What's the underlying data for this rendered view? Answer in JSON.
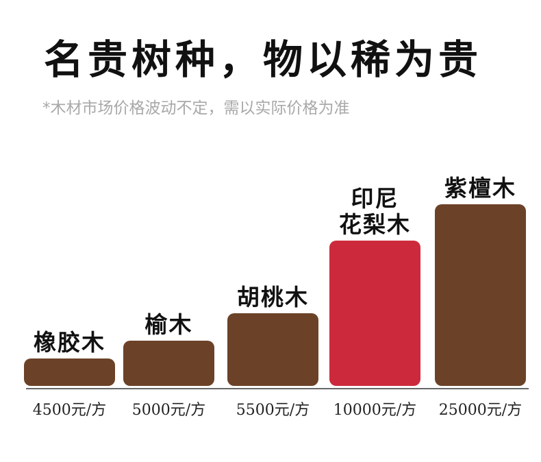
{
  "header": {
    "title": "名贵树种，物以稀为贵",
    "subtitle": "*木材市场价格波动不定，需以实际价格为准"
  },
  "chart_data": {
    "type": "bar",
    "title": "名贵树种，物以稀为贵",
    "subtitle": "*木材市场价格波动不定，需以实际价格为准",
    "categories": [
      [
        "橡胶木"
      ],
      [
        "榆木"
      ],
      [
        "胡桃木"
      ],
      [
        "印尼",
        "花梨木"
      ],
      [
        "紫檀木"
      ]
    ],
    "values": [
      4500,
      5000,
      5500,
      10000,
      25000
    ],
    "value_labels": [
      "4500元/方",
      "5000元/方",
      "5500元/方",
      "10000元/方",
      "25000元/方"
    ],
    "unit": "元/方",
    "colors": [
      "#6b4228",
      "#6b4228",
      "#6b4228",
      "#cc2a3c",
      "#6b4228"
    ],
    "highlight_color": "#cc2a3c",
    "bar_color": "#6b4228",
    "xlabel": "",
    "ylabel": "",
    "grid": false,
    "legend": "none"
  }
}
